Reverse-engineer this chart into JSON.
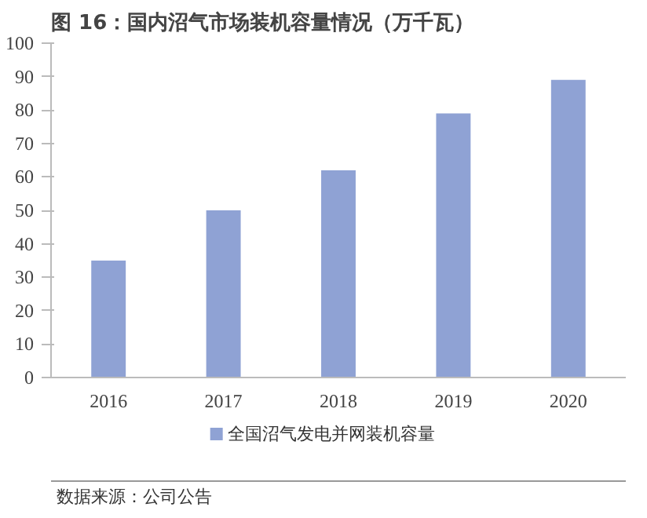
{
  "chart_data": {
    "type": "bar",
    "title": "图 16：国内沼气市场装机容量情况（万千瓦）",
    "categories": [
      "2016",
      "2017",
      "2018",
      "2019",
      "2020"
    ],
    "series": [
      {
        "name": "全国沼气发电并网装机容量",
        "color": "#8fa2d4",
        "values": [
          35,
          50,
          62,
          79,
          89
        ]
      }
    ],
    "ylim": [
      0,
      100
    ],
    "yticks": [
      0,
      10,
      20,
      30,
      40,
      50,
      60,
      70,
      80,
      90,
      100
    ],
    "grid": false,
    "legend": "bottom",
    "annotations": [
      "数据来源：公司公告"
    ]
  }
}
